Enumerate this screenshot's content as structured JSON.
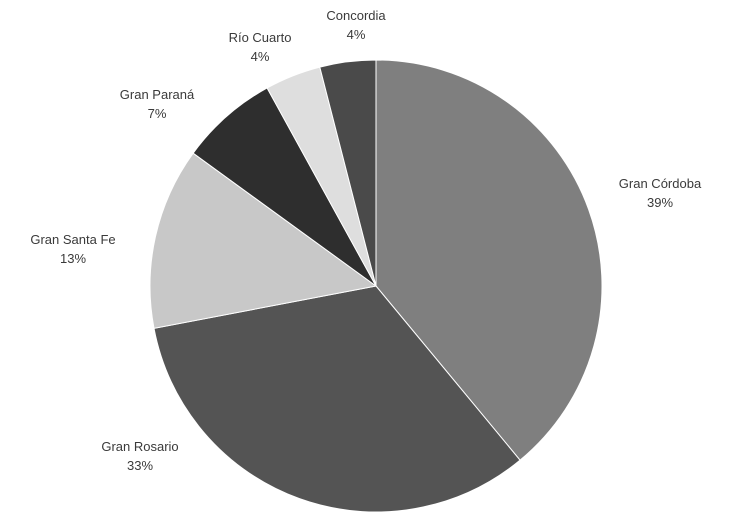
{
  "chart_data": {
    "type": "pie",
    "title": "",
    "start_angle_deg": 0,
    "direction": "clockwise",
    "slices": [
      {
        "label": "Gran Córdoba",
        "value": 39,
        "value_label": "39%",
        "color": "#7f7f7f"
      },
      {
        "label": "Gran Rosario",
        "value": 33,
        "value_label": "33%",
        "color": "#545454"
      },
      {
        "label": "Gran Santa Fe",
        "value": 13,
        "value_label": "13%",
        "color": "#c8c8c8"
      },
      {
        "label": "Gran Paraná",
        "value": 7,
        "value_label": "7%",
        "color": "#2e2e2e"
      },
      {
        "label": "Río Cuarto",
        "value": 4,
        "value_label": "4%",
        "color": "#dedede"
      },
      {
        "label": "Concordia",
        "value": 4,
        "value_label": "4%",
        "color": "#4a4a4a"
      }
    ],
    "legend": "none",
    "label_position": "outside"
  }
}
